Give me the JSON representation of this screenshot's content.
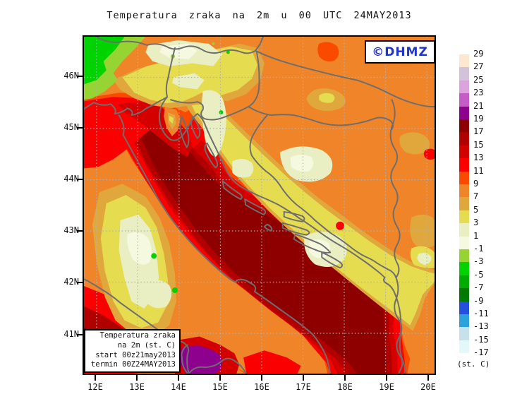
{
  "title": "Temperatura zraka na 2m u 00 UTC 24MAY2013",
  "logo": {
    "text": "©DHMZ",
    "color": "#2233CC"
  },
  "info_box": {
    "line1": "Temperatura zraka",
    "line2": "na 2m (st. C)",
    "line3": "start 00z21may2013",
    "line4": "termin 00Z24MAY2013"
  },
  "axes": {
    "lat": [
      "46N",
      "45N",
      "44N",
      "43N",
      "42N",
      "41N"
    ],
    "lon": [
      "12E",
      "13E",
      "14E",
      "15E",
      "16E",
      "17E",
      "18E",
      "19E",
      "20E"
    ]
  },
  "legend": {
    "values": [
      "29",
      "27",
      "25",
      "23",
      "21",
      "19",
      "17",
      "15",
      "13",
      "11",
      "9",
      "7",
      "5",
      "3",
      "1",
      "-1",
      "-3",
      "-5",
      "-7",
      "-9",
      "-11",
      "-13",
      "-15",
      "-17"
    ],
    "colors": [
      "#FCE8D0",
      "#D2C2DA",
      "#DCA4DC",
      "#C55CC8",
      "#8E008E",
      "#8E0000",
      "#B00000",
      "#D40000",
      "#FA0000",
      "#FA4A00",
      "#F08428",
      "#E0A83C",
      "#E6DC50",
      "#E9EFC2",
      "#F5F9E0",
      "#96D434",
      "#00D400",
      "#00AC00",
      "#007A00",
      "#2450DC",
      "#2CA2DC",
      "#C6E1EA",
      "#E4F7F9"
    ],
    "unit": "(st. C)"
  },
  "map": {
    "grid_color": "#A9B2BC",
    "border_color": "#6E6E6E",
    "frame_color": "#000000",
    "base_temp_band": "7-9",
    "sea_core_temp_band": "17-19"
  }
}
